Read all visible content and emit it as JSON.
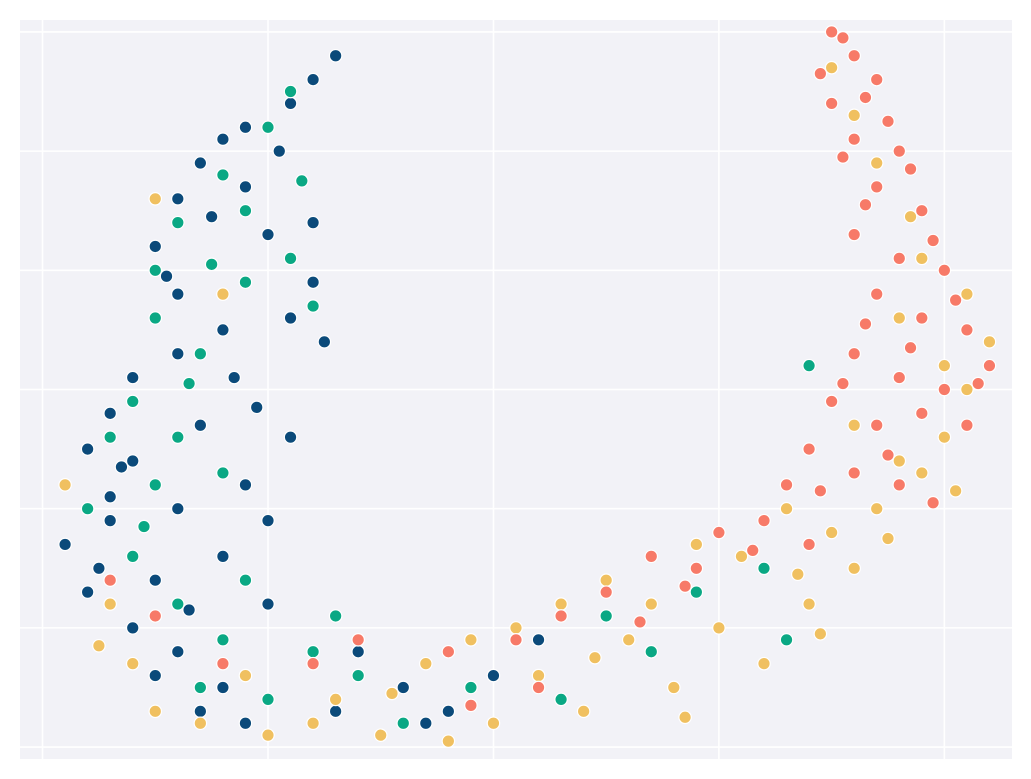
{
  "chart_data": {
    "type": "scatter",
    "title": "",
    "xlabel": "",
    "ylabel": "",
    "xlim": [
      -0.1,
      4.3
    ],
    "ylim": [
      -0.1,
      6.1
    ],
    "xticks": [
      0,
      1,
      2,
      3,
      4
    ],
    "yticks": [
      0,
      1,
      2,
      3,
      4,
      5,
      6
    ],
    "grid": true,
    "legend": "none",
    "background": "#f2f2f7",
    "grid_color": "#ffffff",
    "point_stroke": "#ffffff",
    "series": [
      {
        "color": "#0b4a7a",
        "points": [
          [
            1.3,
            5.8
          ],
          [
            1.2,
            5.6
          ],
          [
            1.1,
            5.4
          ],
          [
            0.9,
            5.2
          ],
          [
            0.7,
            4.9
          ],
          [
            0.6,
            4.6
          ],
          [
            0.5,
            4.2
          ],
          [
            0.6,
            3.8
          ],
          [
            0.8,
            3.5
          ],
          [
            1.1,
            3.6
          ],
          [
            1.2,
            3.9
          ],
          [
            1.0,
            4.3
          ],
          [
            0.9,
            4.7
          ],
          [
            0.8,
            5.1
          ],
          [
            0.6,
            3.3
          ],
          [
            0.4,
            3.1
          ],
          [
            0.3,
            2.8
          ],
          [
            0.2,
            2.5
          ],
          [
            0.3,
            2.1
          ],
          [
            0.1,
            1.7
          ],
          [
            0.2,
            1.3
          ],
          [
            0.4,
            1.0
          ],
          [
            0.6,
            0.8
          ],
          [
            0.8,
            0.5
          ],
          [
            0.9,
            0.2
          ],
          [
            1.3,
            0.3
          ],
          [
            1.6,
            0.5
          ],
          [
            1.8,
            0.3
          ],
          [
            2.0,
            0.6
          ],
          [
            0.4,
            2.4
          ],
          [
            0.7,
            2.7
          ],
          [
            0.9,
            2.2
          ],
          [
            0.8,
            1.6
          ],
          [
            0.5,
            1.4
          ],
          [
            1.1,
            2.6
          ],
          [
            1.0,
            1.9
          ],
          [
            0.7,
            0.3
          ],
          [
            0.5,
            0.6
          ],
          [
            0.3,
            1.9
          ],
          [
            0.6,
            2.0
          ],
          [
            1.2,
            4.4
          ],
          [
            1.25,
            3.4
          ],
          [
            0.85,
            3.1
          ],
          [
            0.55,
            3.95
          ],
          [
            0.75,
            4.45
          ],
          [
            1.05,
            5.0
          ],
          [
            0.95,
            2.85
          ],
          [
            0.35,
            2.35
          ],
          [
            0.25,
            1.5
          ],
          [
            0.65,
            1.15
          ],
          [
            1.0,
            1.2
          ],
          [
            1.4,
            0.8
          ],
          [
            1.7,
            0.2
          ],
          [
            2.2,
            0.9
          ]
        ]
      },
      {
        "color": "#0aa884",
        "points": [
          [
            1.1,
            5.5
          ],
          [
            1.0,
            5.2
          ],
          [
            0.8,
            4.8
          ],
          [
            0.6,
            4.4
          ],
          [
            0.5,
            4.0
          ],
          [
            0.5,
            3.6
          ],
          [
            0.7,
            3.3
          ],
          [
            0.9,
            3.9
          ],
          [
            1.1,
            4.1
          ],
          [
            1.2,
            3.7
          ],
          [
            0.9,
            4.5
          ],
          [
            0.4,
            2.9
          ],
          [
            0.6,
            2.6
          ],
          [
            0.8,
            2.3
          ],
          [
            0.2,
            2.0
          ],
          [
            0.4,
            1.6
          ],
          [
            0.6,
            1.2
          ],
          [
            0.8,
            0.9
          ],
          [
            0.7,
            0.5
          ],
          [
            1.0,
            0.4
          ],
          [
            1.4,
            0.6
          ],
          [
            1.6,
            0.2
          ],
          [
            1.9,
            0.5
          ],
          [
            2.1,
            0.9
          ],
          [
            2.5,
            1.1
          ],
          [
            2.7,
            0.8
          ],
          [
            2.9,
            1.3
          ],
          [
            3.2,
            1.5
          ],
          [
            3.3,
            0.9
          ],
          [
            0.3,
            2.6
          ],
          [
            0.5,
            2.2
          ],
          [
            0.9,
            1.4
          ],
          [
            1.2,
            0.8
          ],
          [
            3.4,
            3.2
          ],
          [
            3.5,
            2.9
          ],
          [
            1.15,
            4.75
          ],
          [
            0.75,
            4.05
          ],
          [
            0.65,
            3.05
          ],
          [
            0.45,
            1.85
          ],
          [
            1.3,
            1.1
          ],
          [
            2.3,
            0.4
          ]
        ]
      },
      {
        "color": "#f0c060",
        "points": [
          [
            0.5,
            4.6
          ],
          [
            0.8,
            3.8
          ],
          [
            0.1,
            2.2
          ],
          [
            0.3,
            1.2
          ],
          [
            0.4,
            0.7
          ],
          [
            0.7,
            0.2
          ],
          [
            1.0,
            0.1
          ],
          [
            1.3,
            0.4
          ],
          [
            1.5,
            0.1
          ],
          [
            1.7,
            0.7
          ],
          [
            2.0,
            0.2
          ],
          [
            2.2,
            0.6
          ],
          [
            2.4,
            0.3
          ],
          [
            2.6,
            0.9
          ],
          [
            2.8,
            0.5
          ],
          [
            3.0,
            1.0
          ],
          [
            3.2,
            0.7
          ],
          [
            3.4,
            1.2
          ],
          [
            3.6,
            1.5
          ],
          [
            3.5,
            1.8
          ],
          [
            3.7,
            2.0
          ],
          [
            3.8,
            2.4
          ],
          [
            4.0,
            2.6
          ],
          [
            4.1,
            3.0
          ],
          [
            4.2,
            3.4
          ],
          [
            4.1,
            3.8
          ],
          [
            3.9,
            4.1
          ],
          [
            3.7,
            4.9
          ],
          [
            3.6,
            5.3
          ],
          [
            3.5,
            5.7
          ],
          [
            3.8,
            3.6
          ],
          [
            3.6,
            2.7
          ],
          [
            3.3,
            2.0
          ],
          [
            2.9,
            1.7
          ],
          [
            2.5,
            1.4
          ],
          [
            2.3,
            1.2
          ],
          [
            1.9,
            0.9
          ],
          [
            1.2,
            0.2
          ],
          [
            0.9,
            0.6
          ],
          [
            0.5,
            0.3
          ],
          [
            2.1,
            1.0
          ],
          [
            2.7,
            1.2
          ],
          [
            3.1,
            1.6
          ],
          [
            3.9,
            2.3
          ],
          [
            4.0,
            3.2
          ],
          [
            1.8,
            0.05
          ],
          [
            2.45,
            0.75
          ],
          [
            3.35,
            1.45
          ],
          [
            3.75,
            1.75
          ],
          [
            4.05,
            2.15
          ],
          [
            3.85,
            4.45
          ],
          [
            0.25,
            0.85
          ],
          [
            1.55,
            0.45
          ],
          [
            2.85,
            0.25
          ],
          [
            3.45,
            0.95
          ]
        ]
      },
      {
        "color": "#f77a68",
        "points": [
          [
            3.5,
            6.0
          ],
          [
            3.6,
            5.8
          ],
          [
            3.7,
            5.6
          ],
          [
            3.5,
            5.4
          ],
          [
            3.6,
            5.1
          ],
          [
            3.8,
            5.0
          ],
          [
            3.7,
            4.7
          ],
          [
            3.9,
            4.5
          ],
          [
            3.6,
            4.3
          ],
          [
            3.8,
            4.1
          ],
          [
            4.0,
            4.0
          ],
          [
            3.7,
            3.8
          ],
          [
            3.9,
            3.6
          ],
          [
            4.1,
            3.5
          ],
          [
            4.2,
            3.2
          ],
          [
            4.0,
            3.0
          ],
          [
            3.8,
            3.1
          ],
          [
            3.6,
            3.3
          ],
          [
            3.5,
            2.9
          ],
          [
            3.7,
            2.7
          ],
          [
            3.9,
            2.8
          ],
          [
            4.1,
            2.7
          ],
          [
            3.4,
            2.5
          ],
          [
            3.6,
            2.3
          ],
          [
            3.8,
            2.2
          ],
          [
            3.3,
            2.2
          ],
          [
            3.2,
            1.9
          ],
          [
            3.4,
            1.7
          ],
          [
            3.0,
            1.8
          ],
          [
            2.9,
            1.5
          ],
          [
            2.7,
            1.6
          ],
          [
            2.5,
            1.3
          ],
          [
            2.3,
            1.1
          ],
          [
            2.1,
            0.9
          ],
          [
            1.8,
            0.8
          ],
          [
            1.4,
            0.9
          ],
          [
            1.2,
            0.7
          ],
          [
            0.8,
            0.7
          ],
          [
            0.5,
            1.1
          ],
          [
            0.3,
            1.4
          ],
          [
            3.55,
            5.95
          ],
          [
            3.65,
            5.45
          ],
          [
            3.75,
            5.25
          ],
          [
            3.85,
            4.85
          ],
          [
            3.95,
            4.25
          ],
          [
            4.05,
            3.75
          ],
          [
            3.65,
            3.55
          ],
          [
            3.85,
            3.35
          ],
          [
            3.55,
            3.05
          ],
          [
            3.75,
            2.45
          ],
          [
            3.95,
            2.05
          ],
          [
            3.45,
            2.15
          ],
          [
            3.15,
            1.65
          ],
          [
            2.85,
            1.35
          ],
          [
            2.65,
            1.05
          ],
          [
            3.55,
            4.95
          ],
          [
            3.45,
            5.65
          ],
          [
            3.65,
            4.55
          ],
          [
            4.15,
            3.05
          ],
          [
            2.2,
            0.5
          ],
          [
            1.9,
            0.35
          ]
        ]
      }
    ]
  }
}
